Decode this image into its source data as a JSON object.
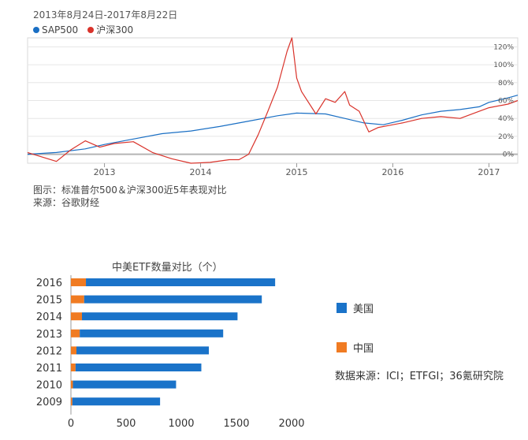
{
  "colors": {
    "sp500": "#1a6fc4",
    "csi300": "#d9332b",
    "usa": "#1a73c9",
    "china": "#f07b22"
  },
  "chart1": {
    "date_range": "2013年8月24日-2017年8月22日",
    "legend": [
      "SAP500",
      "沪深300"
    ],
    "caption": "图示：标准普尔500＆沪深300近5年表现对比",
    "source": "来源：谷歌财经"
  },
  "chart2": {
    "legend_usa": "美国",
    "legend_china": "中国",
    "source": "数据来源：ICI；ETFGI；36氪研究院"
  },
  "chart_data": [
    {
      "type": "line",
      "title": "2013年8月24日-2017年8月22日",
      "xlabel": "",
      "ylabel": "",
      "x_ticks": [
        "2013",
        "2014",
        "2015",
        "2016",
        "2017"
      ],
      "y_ticks": [
        "0%",
        "20%",
        "40%",
        "60%",
        "80%",
        "100%",
        "120%"
      ],
      "ylim": [
        -10,
        130
      ],
      "xlim": [
        2012.2,
        2017.3
      ],
      "series": [
        {
          "name": "SAP500",
          "x": [
            2012.2,
            2012.5,
            2012.8,
            2013.0,
            2013.3,
            2013.6,
            2013.9,
            2014.2,
            2014.5,
            2014.8,
            2015.0,
            2015.3,
            2015.5,
            2015.7,
            2015.9,
            2016.1,
            2016.3,
            2016.5,
            2016.7,
            2016.9,
            2017.0,
            2017.2,
            2017.3
          ],
          "values": [
            0,
            2,
            6,
            11,
            17,
            23,
            26,
            31,
            37,
            43,
            46,
            45,
            40,
            35,
            33,
            38,
            44,
            48,
            50,
            53,
            58,
            63,
            66
          ]
        },
        {
          "name": "沪深300",
          "x": [
            2012.2,
            2012.35,
            2012.5,
            2012.65,
            2012.8,
            2012.95,
            2013.1,
            2013.3,
            2013.5,
            2013.7,
            2013.9,
            2014.1,
            2014.3,
            2014.4,
            2014.5,
            2014.6,
            2014.7,
            2014.8,
            2014.9,
            2014.95,
            2015.0,
            2015.05,
            2015.2,
            2015.3,
            2015.4,
            2015.5,
            2015.55,
            2015.65,
            2015.75,
            2015.85,
            2015.95,
            2016.1,
            2016.3,
            2016.5,
            2016.7,
            2016.9,
            2017.0,
            2017.2,
            2017.3
          ],
          "values": [
            2,
            -3,
            -8,
            5,
            15,
            8,
            12,
            14,
            2,
            -5,
            -10,
            -9,
            -6,
            -6,
            0,
            22,
            48,
            75,
            115,
            130,
            85,
            70,
            45,
            62,
            58,
            70,
            55,
            48,
            25,
            30,
            32,
            35,
            40,
            42,
            40,
            48,
            52,
            56,
            60
          ]
        }
      ]
    },
    {
      "type": "bar",
      "stacked": true,
      "orientation": "horizontal",
      "title": "中美ETF数量对比（个）",
      "categories": [
        "2016",
        "2015",
        "2014",
        "2013",
        "2012",
        "2011",
        "2010",
        "2009"
      ],
      "x_ticks": [
        "0",
        "500",
        "1000",
        "1500",
        "2000"
      ],
      "xlim": [
        0,
        2000
      ],
      "series": [
        {
          "name": "中国",
          "values": [
            136,
            120,
            100,
            80,
            50,
            42,
            18,
            13
          ]
        },
        {
          "name": "美国",
          "values": [
            1715,
            1610,
            1410,
            1300,
            1200,
            1140,
            935,
            795
          ]
        }
      ]
    }
  ]
}
